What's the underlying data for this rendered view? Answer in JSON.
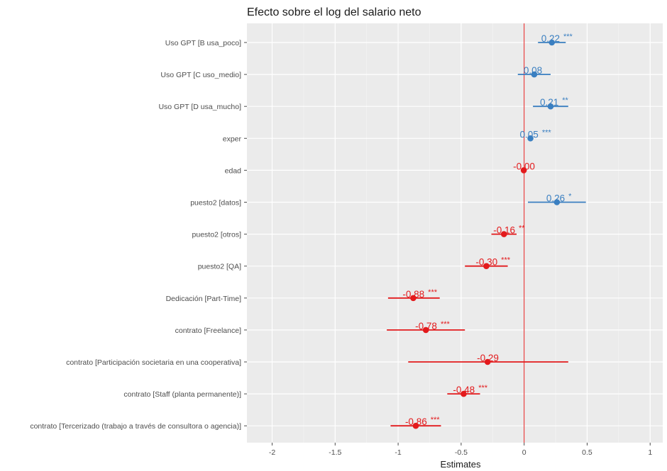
{
  "chart_data": {
    "type": "forest",
    "title": "Efecto sobre el log del salario neto",
    "xlabel": "Estimates",
    "xlim": [
      -2.2,
      1.1
    ],
    "xticks": [
      -2,
      -1.5,
      -1,
      -0.5,
      0,
      0.5,
      1
    ],
    "xtick_labels": [
      "-2",
      "-1.5",
      "-1",
      "-0.5",
      "0",
      "0.5",
      "1"
    ],
    "reference_line": 0,
    "colors": {
      "positive": "#3a7fc1",
      "negative": "#e31a1c",
      "panel": "#ebebeb",
      "grid": "#ffffff"
    },
    "terms": [
      {
        "label": "Uso GPT [B usa_poco]",
        "estimate": 0.22,
        "ci": [
          0.11,
          0.33
        ],
        "text": "0.22",
        "stars": "***"
      },
      {
        "label": "Uso GPT [C uso_medio]",
        "estimate": 0.08,
        "ci": [
          -0.05,
          0.21
        ],
        "text": "0.08",
        "stars": ""
      },
      {
        "label": "Uso GPT [D usa_mucho]",
        "estimate": 0.21,
        "ci": [
          0.07,
          0.35
        ],
        "text": "0.21",
        "stars": "**"
      },
      {
        "label": "exper",
        "estimate": 0.05,
        "ci": [
          0.04,
          0.06
        ],
        "text": "0.05",
        "stars": "***"
      },
      {
        "label": "edad",
        "estimate": -0.003,
        "ci": [
          -0.012,
          0.006
        ],
        "text": "-0.00",
        "stars": ""
      },
      {
        "label": "puesto2 [datos]",
        "estimate": 0.26,
        "ci": [
          0.03,
          0.49
        ],
        "text": "0.26",
        "stars": "*"
      },
      {
        "label": "puesto2 [otros]",
        "estimate": -0.16,
        "ci": [
          -0.26,
          -0.06
        ],
        "text": "-0.16",
        "stars": "**"
      },
      {
        "label": "puesto2 [QA]",
        "estimate": -0.3,
        "ci": [
          -0.47,
          -0.13
        ],
        "text": "-0.30",
        "stars": "***"
      },
      {
        "label": "Dedicación [Part-Time]",
        "estimate": -0.88,
        "ci": [
          -1.08,
          -0.67
        ],
        "text": "-0.88",
        "stars": "***"
      },
      {
        "label": "contrato [Freelance]",
        "estimate": -0.78,
        "ci": [
          -1.09,
          -0.47
        ],
        "text": "-0.78",
        "stars": "***"
      },
      {
        "label": "contrato [Participación societaria en una cooperativa]",
        "estimate": -0.29,
        "ci": [
          -0.92,
          0.35
        ],
        "text": "-0.29",
        "stars": ""
      },
      {
        "label": "contrato [Staff (planta permanente)]",
        "estimate": -0.48,
        "ci": [
          -0.61,
          -0.35
        ],
        "text": "-0.48",
        "stars": "***"
      },
      {
        "label": "contrato [Tercerizado (trabajo a través de consultora o agencia)]",
        "estimate": -0.86,
        "ci": [
          -1.06,
          -0.66
        ],
        "text": "-0.86",
        "stars": "***"
      }
    ]
  }
}
